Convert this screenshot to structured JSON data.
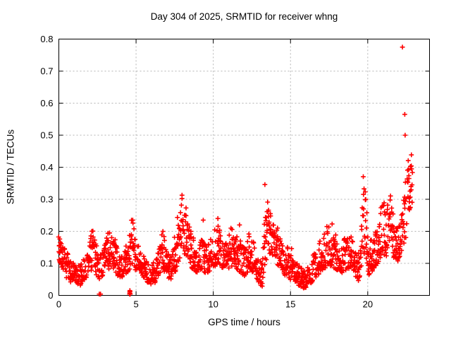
{
  "figure": {
    "title": "Day 304 of 2025, SRMTID for receiver whng",
    "xlabel": "GPS time / hours",
    "ylabel": "SRMTID / TECUs"
  },
  "chart_data": {
    "type": "scatter",
    "title": "Day 304 of 2025, SRMTID for receiver whng",
    "xlabel": "GPS time / hours",
    "ylabel": "SRMTID / TECUs",
    "xlim": [
      0,
      24
    ],
    "ylim": [
      0,
      0.8
    ],
    "x_tick_values": [
      0,
      5,
      10,
      15,
      20
    ],
    "x_tick_labels": [
      "0",
      "5",
      "10",
      "15",
      "20"
    ],
    "y_tick_values": [
      0,
      0.1,
      0.2,
      0.3,
      0.4,
      0.5,
      0.6,
      0.7,
      0.8
    ],
    "y_tick_labels": [
      "0",
      "0.1",
      "0.2",
      "0.3",
      "0.4",
      "0.5",
      "0.6",
      "0.7",
      "0.8"
    ],
    "grid": true,
    "legend": false,
    "marker": "plus",
    "marker_color": "#ff0000",
    "grid_color": "#b3b3b3",
    "axis_color": "#000000",
    "series_name": "SRMTID",
    "envelope_format": [
      "hour",
      "min_TECU",
      "max_TECU"
    ],
    "envelope": [
      [
        0.0,
        0.1,
        0.185
      ],
      [
        0.25,
        0.085,
        0.16
      ],
      [
        0.5,
        0.055,
        0.135
      ],
      [
        0.8,
        0.04,
        0.115
      ],
      [
        1.1,
        0.03,
        0.1
      ],
      [
        1.4,
        0.032,
        0.095
      ],
      [
        1.7,
        0.05,
        0.12
      ],
      [
        2.0,
        0.07,
        0.16
      ],
      [
        2.2,
        0.085,
        0.235
      ],
      [
        2.35,
        0.07,
        0.18
      ],
      [
        2.6,
        0.05,
        0.12
      ],
      [
        2.9,
        0.065,
        0.15
      ],
      [
        3.2,
        0.08,
        0.2
      ],
      [
        3.45,
        0.09,
        0.21
      ],
      [
        3.7,
        0.07,
        0.16
      ],
      [
        3.95,
        0.05,
        0.13
      ],
      [
        4.2,
        0.06,
        0.15
      ],
      [
        4.5,
        0.07,
        0.18
      ],
      [
        4.75,
        0.09,
        0.265
      ],
      [
        4.95,
        0.08,
        0.17
      ],
      [
        5.25,
        0.07,
        0.145
      ],
      [
        5.6,
        0.045,
        0.115
      ],
      [
        5.95,
        0.035,
        0.1
      ],
      [
        6.25,
        0.04,
        0.11
      ],
      [
        6.55,
        0.07,
        0.185
      ],
      [
        6.75,
        0.075,
        0.21
      ],
      [
        7.0,
        0.055,
        0.13
      ],
      [
        7.3,
        0.05,
        0.125
      ],
      [
        7.6,
        0.08,
        0.21
      ],
      [
        7.85,
        0.12,
        0.335
      ],
      [
        8.1,
        0.12,
        0.3
      ],
      [
        8.35,
        0.1,
        0.255
      ],
      [
        8.6,
        0.085,
        0.19
      ],
      [
        8.9,
        0.07,
        0.165
      ],
      [
        9.2,
        0.08,
        0.195
      ],
      [
        9.5,
        0.07,
        0.165
      ],
      [
        9.8,
        0.075,
        0.17
      ],
      [
        10.1,
        0.09,
        0.21
      ],
      [
        10.3,
        0.1,
        0.235
      ],
      [
        10.55,
        0.08,
        0.18
      ],
      [
        10.85,
        0.08,
        0.175
      ],
      [
        11.15,
        0.09,
        0.215
      ],
      [
        11.45,
        0.085,
        0.19
      ],
      [
        11.75,
        0.07,
        0.175
      ],
      [
        12.05,
        0.06,
        0.15
      ],
      [
        12.35,
        0.08,
        0.2
      ],
      [
        12.65,
        0.07,
        0.17
      ],
      [
        12.95,
        0.04,
        0.12
      ],
      [
        13.15,
        0.025,
        0.105
      ],
      [
        13.35,
        0.1,
        0.35
      ],
      [
        13.55,
        0.12,
        0.31
      ],
      [
        13.8,
        0.12,
        0.27
      ],
      [
        14.1,
        0.1,
        0.225
      ],
      [
        14.4,
        0.08,
        0.175
      ],
      [
        14.7,
        0.06,
        0.135
      ],
      [
        15.0,
        0.05,
        0.18
      ],
      [
        15.25,
        0.04,
        0.115
      ],
      [
        15.55,
        0.03,
        0.095
      ],
      [
        15.9,
        0.022,
        0.08
      ],
      [
        16.2,
        0.03,
        0.09
      ],
      [
        16.5,
        0.05,
        0.13
      ],
      [
        16.8,
        0.065,
        0.16
      ],
      [
        17.1,
        0.08,
        0.185
      ],
      [
        17.4,
        0.09,
        0.225
      ],
      [
        17.7,
        0.09,
        0.23
      ],
      [
        18.0,
        0.08,
        0.185
      ],
      [
        18.3,
        0.07,
        0.165
      ],
      [
        18.6,
        0.08,
        0.185
      ],
      [
        18.9,
        0.08,
        0.19
      ],
      [
        19.2,
        0.06,
        0.155
      ],
      [
        19.45,
        0.04,
        0.125
      ],
      [
        19.7,
        0.14,
        0.385
      ],
      [
        19.85,
        0.12,
        0.33
      ],
      [
        20.05,
        0.06,
        0.175
      ],
      [
        20.35,
        0.08,
        0.19
      ],
      [
        20.65,
        0.1,
        0.225
      ],
      [
        20.95,
        0.13,
        0.31
      ],
      [
        21.2,
        0.12,
        0.28
      ],
      [
        21.45,
        0.17,
        0.335
      ],
      [
        21.65,
        0.12,
        0.26
      ],
      [
        21.9,
        0.1,
        0.225
      ],
      [
        22.1,
        0.12,
        0.25
      ],
      [
        22.3,
        0.14,
        0.3
      ],
      [
        22.5,
        0.18,
        0.385
      ],
      [
        22.65,
        0.25,
        0.46
      ],
      [
        22.8,
        0.28,
        0.445
      ],
      [
        22.9,
        0.2,
        0.42
      ]
    ],
    "outliers": [
      [
        2.62,
        0.004
      ],
      [
        2.7,
        0.004
      ],
      [
        4.58,
        0.004
      ],
      [
        4.59,
        0.01
      ],
      [
        4.6,
        0.006
      ],
      [
        4.61,
        0.012
      ],
      [
        4.62,
        0.004
      ],
      [
        4.6,
        0.015
      ],
      [
        9.35,
        0.235
      ],
      [
        10.3,
        0.24
      ],
      [
        11.7,
        0.22
      ],
      [
        22.25,
        0.775
      ],
      [
        22.4,
        0.565
      ],
      [
        22.42,
        0.5
      ]
    ],
    "t_max": 22.9,
    "sample_step_hours": 0.022,
    "seed": 7
  }
}
